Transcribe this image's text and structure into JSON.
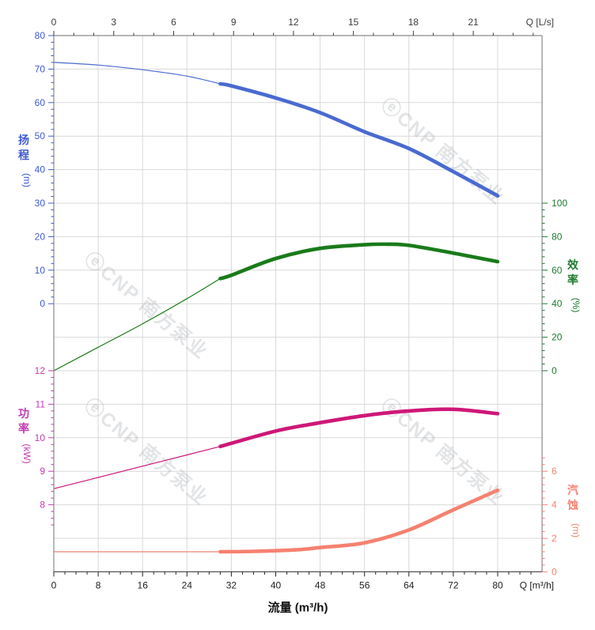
{
  "watermark": {
    "text": "ⓔCNP 南方泵业"
  },
  "chart_data": {
    "type": "line",
    "title": "流量 (m³/h)",
    "min_continuous_flow_m3h": 30,
    "axes": {
      "top": {
        "label": "Q [L/s]",
        "ticks": [
          0,
          3,
          6,
          9,
          12,
          15,
          18,
          21
        ],
        "minor_step": 1,
        "range": [
          0,
          24.4
        ],
        "color": "#3d3d3d"
      },
      "bottom": {
        "label": "Q [m³/h]",
        "title": "流量 (m³/h)",
        "ticks": [
          0,
          8,
          16,
          24,
          32,
          40,
          48,
          56,
          64,
          72,
          80
        ],
        "minor_step": 2,
        "range": [
          0,
          88
        ],
        "color": "#222222"
      },
      "head": {
        "title": "扬程",
        "unit": "(m)",
        "ticks": [
          80,
          70,
          60,
          50,
          40,
          30,
          20,
          10,
          0
        ],
        "minor_step": 2,
        "range": [
          0,
          80
        ],
        "color": "#3f5ad1"
      },
      "power": {
        "title": "功率",
        "unit": "(kW)",
        "ticks": [
          12,
          11,
          10,
          9,
          8
        ],
        "minor_step": 0.2,
        "range": [
          7.4,
          12
        ],
        "color": "#c43bb2"
      },
      "efficiency": {
        "title": "效率",
        "unit": "(%)",
        "ticks": [
          100,
          80,
          60,
          40,
          20,
          0
        ],
        "minor_step": 4,
        "range": [
          0,
          100
        ],
        "color": "#1e7a2e"
      },
      "npsh": {
        "title": "汽蚀",
        "unit": "(m)",
        "ticks": [
          6,
          4,
          2,
          0
        ],
        "minor_step": 0.4,
        "range": [
          0,
          6.8
        ],
        "color": "#f58170"
      }
    },
    "series": [
      {
        "name": "head-curve",
        "axis": "head",
        "color": "#4a6ad0",
        "thin": [
          [
            0,
            72.0
          ],
          [
            8,
            71.2
          ],
          [
            16,
            69.8
          ],
          [
            24,
            67.9
          ],
          [
            30,
            65.6
          ]
        ],
        "thick": [
          [
            30,
            65.6
          ],
          [
            32,
            65.0
          ],
          [
            40,
            61.4
          ],
          [
            48,
            57.0
          ],
          [
            56,
            51.3
          ],
          [
            64,
            46.3
          ],
          [
            72,
            39.4
          ],
          [
            80,
            32.2
          ]
        ]
      },
      {
        "name": "efficiency-curve",
        "axis": "efficiency",
        "color": "#1a7a1a",
        "thin": [
          [
            0,
            0
          ],
          [
            8,
            14
          ],
          [
            16,
            28
          ],
          [
            24,
            43
          ],
          [
            30,
            55
          ]
        ],
        "thick": [
          [
            30,
            55
          ],
          [
            32,
            57
          ],
          [
            40,
            67
          ],
          [
            48,
            73
          ],
          [
            56,
            75.2
          ],
          [
            60,
            75.5
          ],
          [
            64,
            74.8
          ],
          [
            72,
            70.2
          ],
          [
            80,
            65.1
          ]
        ]
      },
      {
        "name": "power-curve",
        "axis": "power",
        "color": "#ce1778",
        "thin": [
          [
            0,
            8.48
          ],
          [
            10,
            8.9
          ],
          [
            20,
            9.32
          ],
          [
            30,
            9.74
          ]
        ],
        "thick": [
          [
            30,
            9.74
          ],
          [
            40,
            10.2
          ],
          [
            48,
            10.45
          ],
          [
            56,
            10.66
          ],
          [
            64,
            10.8
          ],
          [
            72,
            10.85
          ],
          [
            80,
            10.72
          ]
        ]
      },
      {
        "name": "npsh-curve",
        "axis": "npsh",
        "color": "#f58170",
        "thin": [
          [
            0,
            1.2
          ],
          [
            15,
            1.2
          ],
          [
            30,
            1.2
          ]
        ],
        "thick": [
          [
            30,
            1.2
          ],
          [
            36,
            1.22
          ],
          [
            44,
            1.32
          ],
          [
            48,
            1.45
          ],
          [
            56,
            1.73
          ],
          [
            64,
            2.5
          ],
          [
            72,
            3.7
          ],
          [
            80,
            4.87
          ]
        ]
      }
    ],
    "layout_hints": {
      "grid": "on",
      "grid_color": "#d9d9d9",
      "border_color": "#8a8a8a",
      "background": "#ffffff"
    }
  }
}
